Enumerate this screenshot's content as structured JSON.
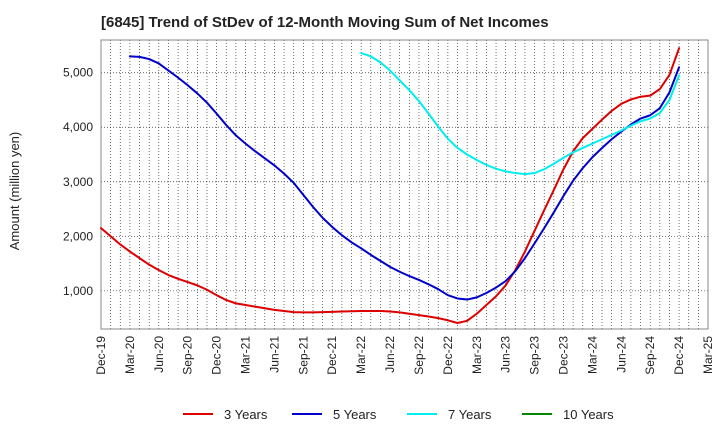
{
  "chart_data": {
    "type": "line",
    "title": "[6845]  Trend of StDev of 12-Month Moving Sum of Net Incomes",
    "xlabel": "",
    "ylabel": "Amount (million yen)",
    "ylim": [
      300,
      5600
    ],
    "yticks": [
      1000,
      2000,
      3000,
      4000,
      5000
    ],
    "ytick_labels": [
      "1,000",
      "2,000",
      "3,000",
      "4,000",
      "5,000"
    ],
    "xtick_labels": [
      "Dec-19",
      "Mar-20",
      "Jun-20",
      "Sep-20",
      "Dec-20",
      "Mar-21",
      "Jun-21",
      "Sep-21",
      "Dec-21",
      "Mar-22",
      "Jun-22",
      "Sep-22",
      "Dec-22",
      "Mar-23",
      "Jun-23",
      "Sep-23",
      "Dec-23",
      "Mar-24",
      "Jun-24",
      "Sep-24",
      "Dec-24",
      "Mar-25"
    ],
    "grid": true,
    "legend_position": "bottom",
    "series": [
      {
        "name": "3 Years",
        "color": "#dd0000",
        "x": [
          "2019-12",
          "2020-01",
          "2020-02",
          "2020-03",
          "2020-04",
          "2020-05",
          "2020-06",
          "2020-07",
          "2020-08",
          "2020-09",
          "2020-10",
          "2020-11",
          "2020-12",
          "2021-01",
          "2021-02",
          "2021-03",
          "2021-04",
          "2021-05",
          "2021-06",
          "2021-07",
          "2021-08",
          "2021-09",
          "2021-10",
          "2021-11",
          "2021-12",
          "2022-01",
          "2022-02",
          "2022-03",
          "2022-04",
          "2022-05",
          "2022-06",
          "2022-07",
          "2022-08",
          "2022-09",
          "2022-10",
          "2022-11",
          "2022-12",
          "2023-01",
          "2023-02",
          "2023-03",
          "2023-04",
          "2023-05",
          "2023-06",
          "2023-07",
          "2023-08",
          "2023-09",
          "2023-10",
          "2023-11",
          "2023-12",
          "2024-01",
          "2024-02",
          "2024-03",
          "2024-04",
          "2024-05",
          "2024-06",
          "2024-07",
          "2024-08",
          "2024-09",
          "2024-10",
          "2024-11",
          "2024-12"
        ],
        "values": [
          2150,
          2000,
          1850,
          1720,
          1600,
          1480,
          1380,
          1290,
          1220,
          1160,
          1100,
          1020,
          920,
          830,
          770,
          740,
          710,
          680,
          650,
          630,
          610,
          605,
          605,
          610,
          615,
          620,
          625,
          630,
          630,
          630,
          620,
          605,
          580,
          555,
          530,
          500,
          460,
          410,
          450,
          580,
          740,
          900,
          1100,
          1380,
          1720,
          2100,
          2480,
          2850,
          3230,
          3560,
          3800,
          3970,
          4140,
          4300,
          4430,
          4510,
          4560,
          4580,
          4700,
          4960,
          5450
        ]
      },
      {
        "name": "5 Years",
        "color": "#0000cc",
        "x": [
          "2020-03",
          "2020-04",
          "2020-05",
          "2020-06",
          "2020-07",
          "2020-08",
          "2020-09",
          "2020-10",
          "2020-11",
          "2020-12",
          "2021-01",
          "2021-02",
          "2021-03",
          "2021-04",
          "2021-05",
          "2021-06",
          "2021-07",
          "2021-08",
          "2021-09",
          "2021-10",
          "2021-11",
          "2021-12",
          "2022-01",
          "2022-02",
          "2022-03",
          "2022-04",
          "2022-05",
          "2022-06",
          "2022-07",
          "2022-08",
          "2022-09",
          "2022-10",
          "2022-11",
          "2022-12",
          "2023-01",
          "2023-02",
          "2023-03",
          "2023-04",
          "2023-05",
          "2023-06",
          "2023-07",
          "2023-08",
          "2023-09",
          "2023-10",
          "2023-11",
          "2023-12",
          "2024-01",
          "2024-02",
          "2024-03",
          "2024-04",
          "2024-05",
          "2024-06",
          "2024-07",
          "2024-08",
          "2024-09",
          "2024-10",
          "2024-11",
          "2024-12"
        ],
        "values": [
          5300,
          5290,
          5250,
          5170,
          5040,
          4910,
          4770,
          4620,
          4450,
          4250,
          4040,
          3850,
          3700,
          3560,
          3430,
          3300,
          3150,
          2980,
          2760,
          2540,
          2340,
          2170,
          2020,
          1890,
          1780,
          1660,
          1550,
          1440,
          1350,
          1270,
          1200,
          1120,
          1030,
          920,
          860,
          840,
          880,
          960,
          1060,
          1180,
          1360,
          1600,
          1870,
          2150,
          2440,
          2740,
          3020,
          3250,
          3450,
          3620,
          3780,
          3920,
          4050,
          4160,
          4220,
          4350,
          4640,
          5100
        ]
      },
      {
        "name": "7 Years",
        "color": "#00eeee",
        "x": [
          "2022-03",
          "2022-04",
          "2022-05",
          "2022-06",
          "2022-07",
          "2022-08",
          "2022-09",
          "2022-10",
          "2022-11",
          "2022-12",
          "2023-01",
          "2023-02",
          "2023-03",
          "2023-04",
          "2023-05",
          "2023-06",
          "2023-07",
          "2023-08",
          "2023-09",
          "2023-10",
          "2023-11",
          "2023-12",
          "2024-01",
          "2024-02",
          "2024-03",
          "2024-04",
          "2024-05",
          "2024-06",
          "2024-07",
          "2024-08",
          "2024-09",
          "2024-10",
          "2024-11",
          "2024-12"
        ],
        "values": [
          5360,
          5300,
          5190,
          5040,
          4860,
          4680,
          4480,
          4250,
          4010,
          3790,
          3620,
          3500,
          3400,
          3310,
          3240,
          3190,
          3160,
          3140,
          3160,
          3230,
          3330,
          3440,
          3540,
          3620,
          3700,
          3780,
          3860,
          3940,
          4030,
          4110,
          4160,
          4260,
          4500,
          4950
        ]
      },
      {
        "name": "10 Years",
        "color": "#008800",
        "x": [],
        "values": []
      }
    ]
  }
}
